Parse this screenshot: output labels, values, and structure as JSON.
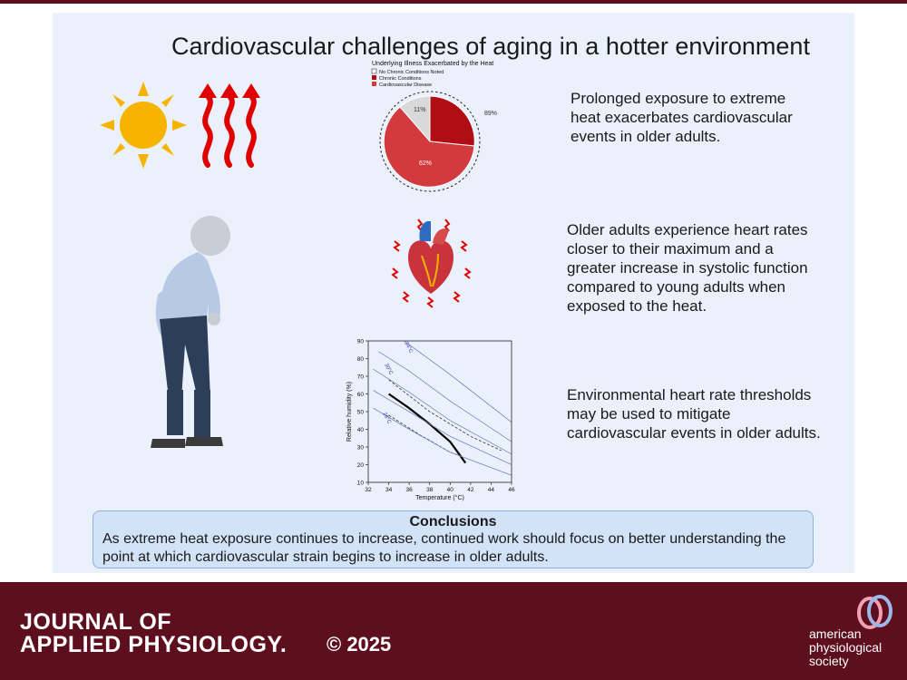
{
  "title": "Cardiovascular challenges of aging in a hotter environment",
  "pie": {
    "title": "Underlying Illness Exacerbated by the Heat",
    "legend": [
      "No Chronic Conditions Noted",
      "Chronic Conditions",
      "Cardiovascular Disease"
    ],
    "labels": {
      "no_chronic": "11%",
      "chronic": "89%",
      "cvd": "62%"
    },
    "colors": {
      "no_chronic": "#d9d9d9",
      "chronic": "#c00d14",
      "cvd": "#d23a3e"
    }
  },
  "statements": [
    "Prolonged exposure to extreme heat exacerbates cardiovascular events in older adults.",
    "Older adults experience heart rates closer to their maximum and a greater increase in systolic function compared to young adults when exposed to the heat.",
    "Environmental heart rate thresholds may be used to mitigate cardiovascular events in older adults."
  ],
  "chart_data": {
    "type": "line",
    "xlabel": "Temperature (°C)",
    "ylabel": "Relative humidity (%)",
    "xlim": [
      32,
      46
    ],
    "ylim": [
      10,
      90
    ],
    "x_ticks": [
      "32",
      "34",
      "36",
      "38",
      "40",
      "42",
      "44",
      "46"
    ],
    "y_ticks": [
      "10",
      "20",
      "30",
      "40",
      "50",
      "60",
      "70",
      "80",
      "90"
    ],
    "isotherm_labels": [
      "26°C",
      "30°C",
      "34°C"
    ],
    "series": [
      {
        "style": "solid-bold",
        "points": [
          [
            34,
            60
          ],
          [
            36,
            52
          ],
          [
            38,
            43
          ],
          [
            40,
            33
          ],
          [
            41.5,
            21
          ]
        ]
      },
      {
        "style": "dashed",
        "points": [
          [
            34,
            48
          ],
          [
            37,
            37
          ],
          [
            40,
            27
          ],
          [
            41,
            25
          ]
        ]
      },
      {
        "style": "dashed",
        "points": [
          [
            34,
            68
          ],
          [
            38,
            50
          ],
          [
            42,
            36
          ],
          [
            45,
            28
          ]
        ]
      },
      {
        "style": "isotherm",
        "points": [
          [
            32.5,
            52
          ],
          [
            36,
            40
          ],
          [
            40,
            27
          ],
          [
            46,
            14
          ]
        ]
      },
      {
        "style": "isotherm",
        "points": [
          [
            32.5,
            62
          ],
          [
            36,
            50
          ],
          [
            40,
            36
          ],
          [
            46,
            20
          ]
        ]
      },
      {
        "style": "isotherm",
        "points": [
          [
            32.5,
            74
          ],
          [
            36,
            61
          ],
          [
            40,
            45
          ],
          [
            46,
            26
          ]
        ]
      },
      {
        "style": "isotherm",
        "points": [
          [
            33,
            84
          ],
          [
            36,
            73
          ],
          [
            40,
            56
          ],
          [
            46,
            33
          ]
        ]
      },
      {
        "style": "isotherm",
        "points": [
          [
            35.5,
            90
          ],
          [
            40,
            71
          ],
          [
            46,
            44
          ]
        ]
      }
    ]
  },
  "conclusions": {
    "heading": "Conclusions",
    "body": "As extreme heat exposure continues to increase, continued work should focus on better understanding the point at which cardiovascular strain begins to increase in older adults."
  },
  "footer": {
    "journal_line1": "JOURNAL OF",
    "journal_line2": "APPLIED PHYSIOLOGY.",
    "copyright": "© 2025",
    "society_line1": "american",
    "society_line2": "physiological",
    "society_line3": "society"
  }
}
